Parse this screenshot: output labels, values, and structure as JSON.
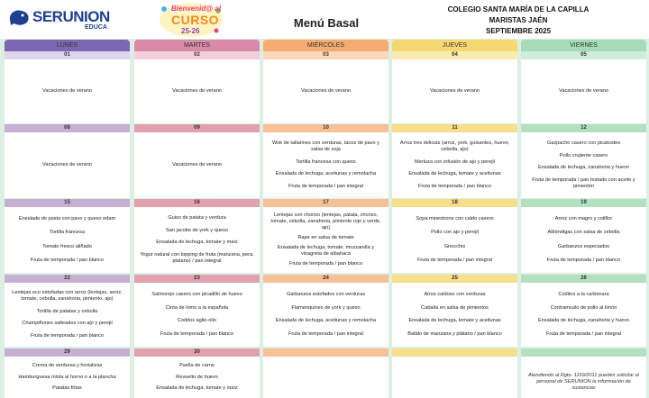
{
  "header": {
    "logo": "SERUNION",
    "logo_sub": "EDUCA",
    "badge": [
      "Bienvenid@ al",
      "CURSO",
      "25-26"
    ],
    "title": "Menú Basal",
    "school": [
      "COLEGIO SANTA MARÍA DE LA CAPILLA",
      "MARISTAS JAÉN",
      "SEPTIEMBRE 2025"
    ]
  },
  "days": [
    "LUNES",
    "MARTES",
    "MIÉRCOLES",
    "JUEVES",
    "VIERNES"
  ],
  "weeks": [
    [
      {
        "date": "01",
        "items": [
          "Vacaciones de verano"
        ]
      },
      {
        "date": "02",
        "items": [
          "Vacaciones de verano"
        ]
      },
      {
        "date": "03",
        "items": [
          "Vacaciones de verano"
        ]
      },
      {
        "date": "04",
        "items": [
          "Vacaciones de verano"
        ]
      },
      {
        "date": "05",
        "items": [
          "Vacaciones de verano"
        ]
      }
    ],
    [
      {
        "date": "08",
        "items": [
          "Vacaciones de verano"
        ]
      },
      {
        "date": "09",
        "items": [
          "Vacaciones de verano"
        ]
      },
      {
        "date": "10",
        "items": [
          "Wok de tallarines con verduras, tacos de pavo y salsa de soja",
          "Tortilla francesa con queso",
          "Ensalada de lechuga, aceitunas y remolacha",
          "Fruta de temporada / pan integral"
        ]
      },
      {
        "date": "11",
        "items": [
          "Arroz tres delicias (arroz, york, guisantes, huevo, cebolla, ajo)",
          "Merluza con infusión de ajo y perejil",
          "Ensalada de lechuga, tomate y aceitunas",
          "Fruta de temporada / pan blanco"
        ]
      },
      {
        "date": "12",
        "items": [
          "Gazpacho casero con picatostes",
          "Pollo crujiente casero",
          "Ensalada de lechuga, zanahoria y huevo",
          "Fruta de temporada / pan tostado con aceite y pimentón"
        ]
      }
    ],
    [
      {
        "date": "15",
        "items": [
          "Ensalada de pasta con pavo y queso edam",
          "Tortilla francesa",
          "Tomate fresco aliñado",
          "Fruta de temporada / pan blanco"
        ]
      },
      {
        "date": "16",
        "items": [
          "Guiso de patata y verdura",
          "San jacobo de york y queso",
          "Ensalada de lechuga, tomate y maíz",
          "Yogur natural con topping de fruta (manzana, pera, platano) / pan integral"
        ]
      },
      {
        "date": "17",
        "items": [
          "Lentejas con chorizo (lentejas, patata, chorizo, tomate, cebolla, zanahoria, pimiento rojo y verde, ajo)",
          "Rape en salsa de tomate",
          "Ensalada de lechuga, tomate, mozzarella y vinagreta de albahaca",
          "Fruta de temporada / pan blanco"
        ]
      },
      {
        "date": "18",
        "items": [
          "Sopa minestrone con caldo casero",
          "Pollo con ajo y perejil",
          "Gnocchis",
          "Fruta de temporada / pan integral"
        ]
      },
      {
        "date": "19",
        "items": [
          "Arroz con magro y coliflor",
          "Albóndigas con salsa de cebolla",
          "Garbanzos especiados",
          "Fruta de temporada / pan blanco"
        ]
      }
    ],
    [
      {
        "date": "22",
        "items": [
          "Lentejas eco estofadas con arroz (lentejas, arroz, tomate, cebolla, zanahoria, pimiento, ajo)",
          "Tortilla de patatas y cebolla",
          "Champiñones salteados con ajo y perejil",
          "Fruta de temporada / pan blanco"
        ]
      },
      {
        "date": "23",
        "items": [
          "Salmorejo casero con picadillo de huevo",
          "Cinta de lomo a la española",
          "Coditos aglio-olio",
          "Fruta de temporada / pan blanco"
        ]
      },
      {
        "date": "24",
        "items": [
          "Garbanzos estofados con verduras",
          "Flamenquines de york y queso",
          "Ensalada de lechuga, aceitunas y remolacha",
          "Fruta de temporada / pan integral"
        ]
      },
      {
        "date": "25",
        "items": [
          "Arroz caldoso con verduras",
          "Caballa en salsa de pimientos",
          "Ensalada de lechuga, tomate y aceitunas",
          "Batido de manzana y plátano / pan blanco"
        ]
      },
      {
        "date": "26",
        "items": [
          "Coditos a la carbonara",
          "Contramuslo de pollo al limón",
          "Ensalada de lechuga, zanahoria y huevo",
          "Fruta de temporada / pan integral"
        ]
      }
    ],
    [
      {
        "date": "29",
        "items": [
          "Crema de verduras y hortalizas",
          "Hamburguesa mixta al horno o a la plancha",
          "Patatas fritas"
        ]
      },
      {
        "date": "30",
        "items": [
          "Paella de carne",
          "Revuelto de huevo",
          "Ensalada de lechuga, tomate y maíz"
        ]
      },
      {
        "date": null,
        "items": []
      },
      {
        "date": null,
        "items": []
      },
      {
        "date": null,
        "note": "Atendiendo al Rgto. 1169/2011 pueden solicitar al personal de SERUNION la información de sustancias"
      }
    ]
  ]
}
